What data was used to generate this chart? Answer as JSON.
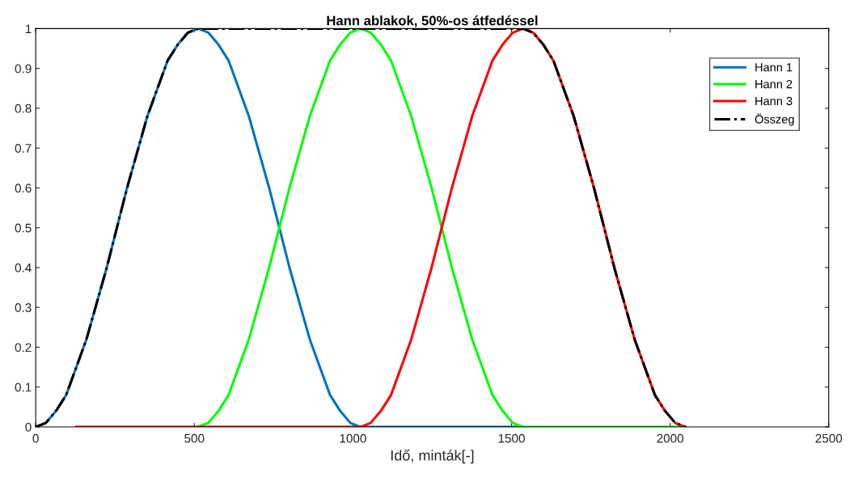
{
  "chart_data": {
    "type": "line",
    "title": "Hann ablakok, 50%-os átfedéssel",
    "xlabel": "Idő, minták[-]",
    "x": [
      0,
      32,
      64,
      96,
      128,
      160,
      192,
      224,
      256,
      288,
      320,
      352,
      384,
      416,
      448,
      480,
      512,
      544,
      576,
      608,
      640,
      672,
      704,
      736,
      768,
      800,
      832,
      864,
      896,
      928,
      960,
      992,
      1024,
      1056,
      1088,
      1120,
      1152,
      1184,
      1216,
      1248,
      1280,
      1312,
      1344,
      1376,
      1408,
      1440,
      1472,
      1504,
      1536,
      1568,
      1600,
      1632,
      1664,
      1696,
      1728,
      1760,
      1792,
      1824,
      1856,
      1888,
      1920,
      1952,
      1984,
      2016,
      2048
    ],
    "series": [
      {
        "name": "Hann 1",
        "color": "#0072bd",
        "x": [
          0,
          32,
          64,
          96,
          128,
          160,
          192,
          224,
          256,
          288,
          320,
          352,
          384,
          416,
          448,
          480,
          512,
          544,
          576,
          608,
          640,
          672,
          704,
          736,
          768,
          800,
          832,
          864,
          896,
          928,
          960,
          992,
          1024,
          1056,
          1088,
          1120,
          1152,
          1184,
          1216,
          1248,
          1280,
          1312,
          1344,
          1376,
          1408,
          1440,
          1472,
          1504,
          1536
        ],
        "values": [
          0,
          0.01,
          0.04,
          0.08,
          0.15,
          0.22,
          0.31,
          0.4,
          0.5,
          0.6,
          0.69,
          0.78,
          0.85,
          0.92,
          0.96,
          0.99,
          1,
          0.99,
          0.96,
          0.92,
          0.85,
          0.78,
          0.69,
          0.6,
          0.5,
          0.4,
          0.31,
          0.22,
          0.15,
          0.08,
          0.04,
          0.01,
          0,
          0,
          0,
          0,
          0,
          0,
          0,
          0,
          0,
          0,
          0,
          0,
          0,
          0,
          0,
          0,
          0
        ]
      },
      {
        "name": "Hann 2",
        "color": "#00ff00",
        "x": [
          512,
          544,
          576,
          608,
          640,
          672,
          704,
          736,
          768,
          800,
          832,
          864,
          896,
          928,
          960,
          992,
          1024,
          1056,
          1088,
          1120,
          1152,
          1184,
          1216,
          1248,
          1280,
          1312,
          1344,
          1376,
          1408,
          1440,
          1472,
          1504,
          1536,
          1568,
          1600,
          1632,
          1664,
          1696,
          1728,
          1760,
          1792,
          1824,
          1856,
          1888,
          1920,
          1952,
          1984,
          2016,
          2048
        ],
        "values": [
          0,
          0.01,
          0.04,
          0.08,
          0.15,
          0.22,
          0.31,
          0.4,
          0.5,
          0.6,
          0.69,
          0.78,
          0.85,
          0.92,
          0.96,
          0.99,
          1,
          0.99,
          0.96,
          0.92,
          0.85,
          0.78,
          0.69,
          0.6,
          0.5,
          0.4,
          0.31,
          0.22,
          0.15,
          0.08,
          0.04,
          0.01,
          0,
          0,
          0,
          0,
          0,
          0,
          0,
          0,
          0,
          0,
          0,
          0,
          0,
          0,
          0,
          0,
          0
        ]
      },
      {
        "name": "Hann 3",
        "color": "#ff0000",
        "x": [
          128,
          160,
          192,
          224,
          256,
          288,
          320,
          352,
          384,
          416,
          448,
          480,
          512,
          544,
          576,
          608,
          640,
          672,
          704,
          736,
          768,
          800,
          832,
          864,
          896,
          928,
          960,
          992,
          1024,
          1056,
          1088,
          1120,
          1152,
          1184,
          1216,
          1248,
          1280,
          1312,
          1344,
          1376,
          1408,
          1440,
          1472,
          1504,
          1536,
          1568,
          1600,
          1632,
          1664,
          1696,
          1728,
          1760,
          1792,
          1824,
          1856,
          1888,
          1920,
          1952,
          1984,
          2016,
          2048
        ],
        "values": [
          0,
          0,
          0,
          0,
          0,
          0,
          0,
          0,
          0,
          0,
          0,
          0,
          0,
          0,
          0,
          0,
          0,
          0,
          0,
          0,
          0,
          0,
          0,
          0,
          0,
          0,
          0,
          0,
          0,
          0.01,
          0.04,
          0.08,
          0.15,
          0.22,
          0.31,
          0.4,
          0.5,
          0.6,
          0.69,
          0.78,
          0.85,
          0.92,
          0.96,
          0.99,
          1,
          0.99,
          0.96,
          0.92,
          0.85,
          0.78,
          0.69,
          0.6,
          0.5,
          0.4,
          0.31,
          0.22,
          0.15,
          0.08,
          0.04,
          0.01,
          0
        ]
      },
      {
        "name": "Összeg",
        "color": "#000000",
        "line_style": "dashdot",
        "values": [
          0,
          0.01,
          0.04,
          0.08,
          0.15,
          0.22,
          0.31,
          0.4,
          0.5,
          0.6,
          0.69,
          0.78,
          0.85,
          0.92,
          0.96,
          0.99,
          1,
          1,
          1,
          1,
          1,
          1,
          1,
          1,
          1,
          1,
          1,
          1,
          1,
          1,
          1,
          1,
          1,
          1,
          1,
          1,
          1,
          1,
          1,
          1,
          1,
          1,
          1,
          1,
          1,
          1,
          1,
          1,
          1,
          0.99,
          0.96,
          0.92,
          0.85,
          0.78,
          0.69,
          0.6,
          0.5,
          0.4,
          0.31,
          0.22,
          0.15,
          0.08,
          0.04,
          0.01,
          0
        ]
      }
    ],
    "xlim": [
      0,
      2500
    ],
    "xticks": [
      0,
      500,
      1000,
      1500,
      2000,
      2500
    ],
    "ylim": [
      0,
      1
    ],
    "yticks": [
      0,
      0.1,
      0.2,
      0.3,
      0.4,
      0.5,
      0.6,
      0.7,
      0.8,
      0.9,
      1
    ],
    "grid": false,
    "legend": "top right",
    "marker": "none",
    "line_style": "solid"
  }
}
